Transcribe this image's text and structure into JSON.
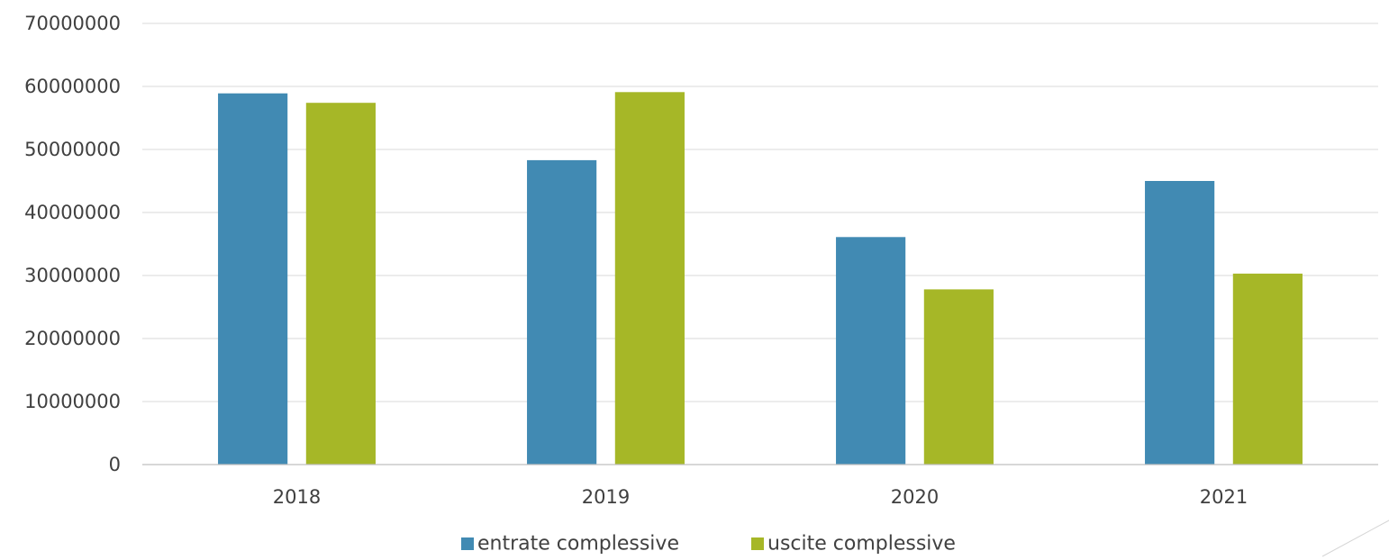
{
  "chart_data": {
    "type": "bar",
    "title": "",
    "xlabel": "",
    "ylabel": "",
    "categories": [
      "2018",
      "2019",
      "2020",
      "2021"
    ],
    "series": [
      {
        "name": "entrate complessive",
        "color": "#418AB3",
        "values": [
          58900000,
          48300000,
          36100000,
          45000000
        ]
      },
      {
        "name": "uscite complessive",
        "color": "#A6B727",
        "values": [
          57400000,
          59100000,
          27800000,
          30300000
        ]
      }
    ],
    "ylim": [
      0,
      70000000
    ],
    "yticks": [
      0,
      10000000,
      20000000,
      30000000,
      40000000,
      50000000,
      60000000,
      70000000
    ],
    "ytick_labels": [
      "0",
      "10000000",
      "20000000",
      "30000000",
      "40000000",
      "50000000",
      "60000000",
      "70000000"
    ],
    "grid": true,
    "legend_position": "bottom"
  }
}
